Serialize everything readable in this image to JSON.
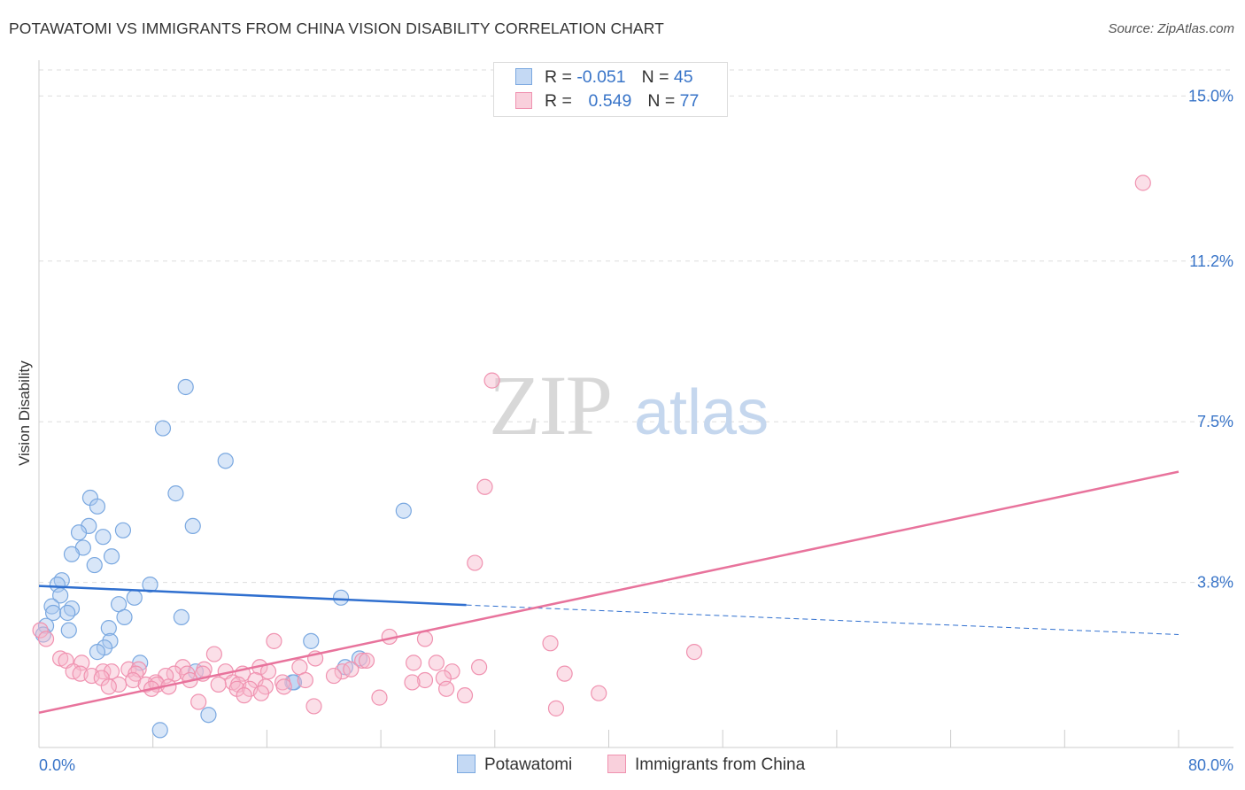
{
  "title": "POTAWATOMI VS IMMIGRANTS FROM CHINA VISION DISABILITY CORRELATION CHART",
  "source": "Source: ZipAtlas.com",
  "watermark": {
    "zip": "ZIP",
    "atlas": "atlas"
  },
  "colors": {
    "blue_fill": "#a8c8f0",
    "blue_stroke": "#7aa8e0",
    "blue_line": "#2f6fcf",
    "pink_fill": "#f6b8cc",
    "pink_stroke": "#f092b0",
    "pink_line": "#e8739c",
    "tick_text": "#3874c8",
    "grid": "#dddddd"
  },
  "legend_top": {
    "rows": [
      {
        "r_label": "R = ",
        "r_value": "-0.051",
        "n_label": "N = ",
        "n_value": "45"
      },
      {
        "r_label": "R = ",
        "r_value": "0.549",
        "n_label": "N = ",
        "n_value": "77"
      }
    ]
  },
  "legend_bottom": [
    "Potawatomi",
    "Immigrants from China"
  ],
  "chart_data": {
    "type": "scatter",
    "title": "POTAWATOMI VS IMMIGRANTS FROM CHINA VISION DISABILITY CORRELATION CHART",
    "xlabel": "",
    "ylabel": "Vision Disability",
    "xlim": [
      0,
      80
    ],
    "ylim": [
      0,
      15.6
    ],
    "x_tick_labels": [
      {
        "value": 0,
        "label": "0.0%"
      },
      {
        "value": 80,
        "label": "80.0%"
      }
    ],
    "x_minor_ticks": [
      0,
      8,
      16,
      24,
      32,
      40,
      48,
      56,
      64,
      72,
      80
    ],
    "y_ticks": [
      {
        "value": 3.8,
        "label": "3.8%"
      },
      {
        "value": 7.5,
        "label": "7.5%"
      },
      {
        "value": 11.2,
        "label": "11.2%"
      },
      {
        "value": 15.0,
        "label": "15.0%"
      }
    ],
    "grid": true,
    "series": [
      {
        "name": "Potawatomi",
        "color": "blue",
        "r": -0.051,
        "n": 45,
        "trend": {
          "x1": 0,
          "y1": 3.72,
          "x2": 30,
          "y2": 3.28,
          "dash_to_x": 80,
          "dash_to_y": 2.6
        },
        "points": [
          [
            10.3,
            8.3
          ],
          [
            8.7,
            7.35
          ],
          [
            13.1,
            6.6
          ],
          [
            9.6,
            5.85
          ],
          [
            3.6,
            5.75
          ],
          [
            4.1,
            5.55
          ],
          [
            25.6,
            5.45
          ],
          [
            10.8,
            5.1
          ],
          [
            3.5,
            5.1
          ],
          [
            5.9,
            5.0
          ],
          [
            2.8,
            4.95
          ],
          [
            4.5,
            4.85
          ],
          [
            3.1,
            4.6
          ],
          [
            2.3,
            4.45
          ],
          [
            5.1,
            4.4
          ],
          [
            3.9,
            4.2
          ],
          [
            1.6,
            3.85
          ],
          [
            1.3,
            3.75
          ],
          [
            7.8,
            3.75
          ],
          [
            1.5,
            3.5
          ],
          [
            21.2,
            3.45
          ],
          [
            6.7,
            3.45
          ],
          [
            5.6,
            3.3
          ],
          [
            0.9,
            3.25
          ],
          [
            2.3,
            3.2
          ],
          [
            1.0,
            3.1
          ],
          [
            2.0,
            3.1
          ],
          [
            10.0,
            3.0
          ],
          [
            6.0,
            3.0
          ],
          [
            0.5,
            2.8
          ],
          [
            4.9,
            2.75
          ],
          [
            2.1,
            2.7
          ],
          [
            5.0,
            2.45
          ],
          [
            19.1,
            2.45
          ],
          [
            4.6,
            2.3
          ],
          [
            4.1,
            2.2
          ],
          [
            22.5,
            2.05
          ],
          [
            7.1,
            1.95
          ],
          [
            21.5,
            1.85
          ],
          [
            11.0,
            1.75
          ],
          [
            17.8,
            1.5
          ],
          [
            17.9,
            1.5
          ],
          [
            11.9,
            0.75
          ],
          [
            8.5,
            0.4
          ],
          [
            0.3,
            2.6
          ]
        ]
      },
      {
        "name": "Immigrants from China",
        "color": "pink",
        "r": 0.549,
        "n": 77,
        "trend": {
          "x1": 0,
          "y1": 0.8,
          "x2": 80,
          "y2": 6.35
        },
        "points": [
          [
            77.5,
            13.0
          ],
          [
            31.8,
            8.45
          ],
          [
            31.3,
            6.0
          ],
          [
            30.6,
            4.25
          ],
          [
            0.1,
            2.7
          ],
          [
            0.5,
            2.5
          ],
          [
            16.5,
            2.45
          ],
          [
            24.6,
            2.55
          ],
          [
            27.1,
            2.5
          ],
          [
            35.9,
            2.4
          ],
          [
            46.0,
            2.2
          ],
          [
            12.3,
            2.15
          ],
          [
            1.5,
            2.05
          ],
          [
            1.9,
            2.0
          ],
          [
            3.0,
            1.95
          ],
          [
            19.4,
            2.05
          ],
          [
            22.7,
            2.0
          ],
          [
            23.0,
            2.0
          ],
          [
            26.3,
            1.95
          ],
          [
            27.9,
            1.95
          ],
          [
            30.9,
            1.85
          ],
          [
            29.0,
            1.75
          ],
          [
            6.3,
            1.8
          ],
          [
            7.0,
            1.8
          ],
          [
            10.1,
            1.85
          ],
          [
            11.6,
            1.8
          ],
          [
            15.5,
            1.85
          ],
          [
            18.3,
            1.85
          ],
          [
            2.4,
            1.75
          ],
          [
            4.5,
            1.75
          ],
          [
            5.1,
            1.75
          ],
          [
            9.5,
            1.7
          ],
          [
            13.1,
            1.75
          ],
          [
            16.1,
            1.75
          ],
          [
            2.9,
            1.7
          ],
          [
            3.7,
            1.65
          ],
          [
            6.8,
            1.7
          ],
          [
            8.9,
            1.65
          ],
          [
            10.4,
            1.7
          ],
          [
            11.5,
            1.7
          ],
          [
            14.3,
            1.7
          ],
          [
            21.3,
            1.75
          ],
          [
            21.9,
            1.8
          ],
          [
            36.9,
            1.7
          ],
          [
            4.4,
            1.6
          ],
          [
            6.6,
            1.55
          ],
          [
            8.2,
            1.5
          ],
          [
            10.6,
            1.55
          ],
          [
            13.6,
            1.5
          ],
          [
            15.2,
            1.55
          ],
          [
            18.7,
            1.55
          ],
          [
            20.7,
            1.65
          ],
          [
            27.1,
            1.55
          ],
          [
            28.4,
            1.6
          ],
          [
            5.6,
            1.45
          ],
          [
            7.5,
            1.45
          ],
          [
            8.3,
            1.45
          ],
          [
            9.1,
            1.4
          ],
          [
            12.6,
            1.45
          ],
          [
            14.0,
            1.45
          ],
          [
            15.9,
            1.4
          ],
          [
            17.1,
            1.5
          ],
          [
            26.2,
            1.5
          ],
          [
            4.9,
            1.4
          ],
          [
            7.9,
            1.35
          ],
          [
            13.9,
            1.35
          ],
          [
            17.2,
            1.4
          ],
          [
            28.6,
            1.35
          ],
          [
            14.8,
            1.35
          ],
          [
            15.6,
            1.25
          ],
          [
            14.4,
            1.2
          ],
          [
            29.9,
            1.2
          ],
          [
            39.3,
            1.25
          ],
          [
            23.9,
            1.15
          ],
          [
            11.2,
            1.05
          ],
          [
            19.3,
            0.95
          ],
          [
            36.3,
            0.9
          ]
        ]
      }
    ]
  }
}
